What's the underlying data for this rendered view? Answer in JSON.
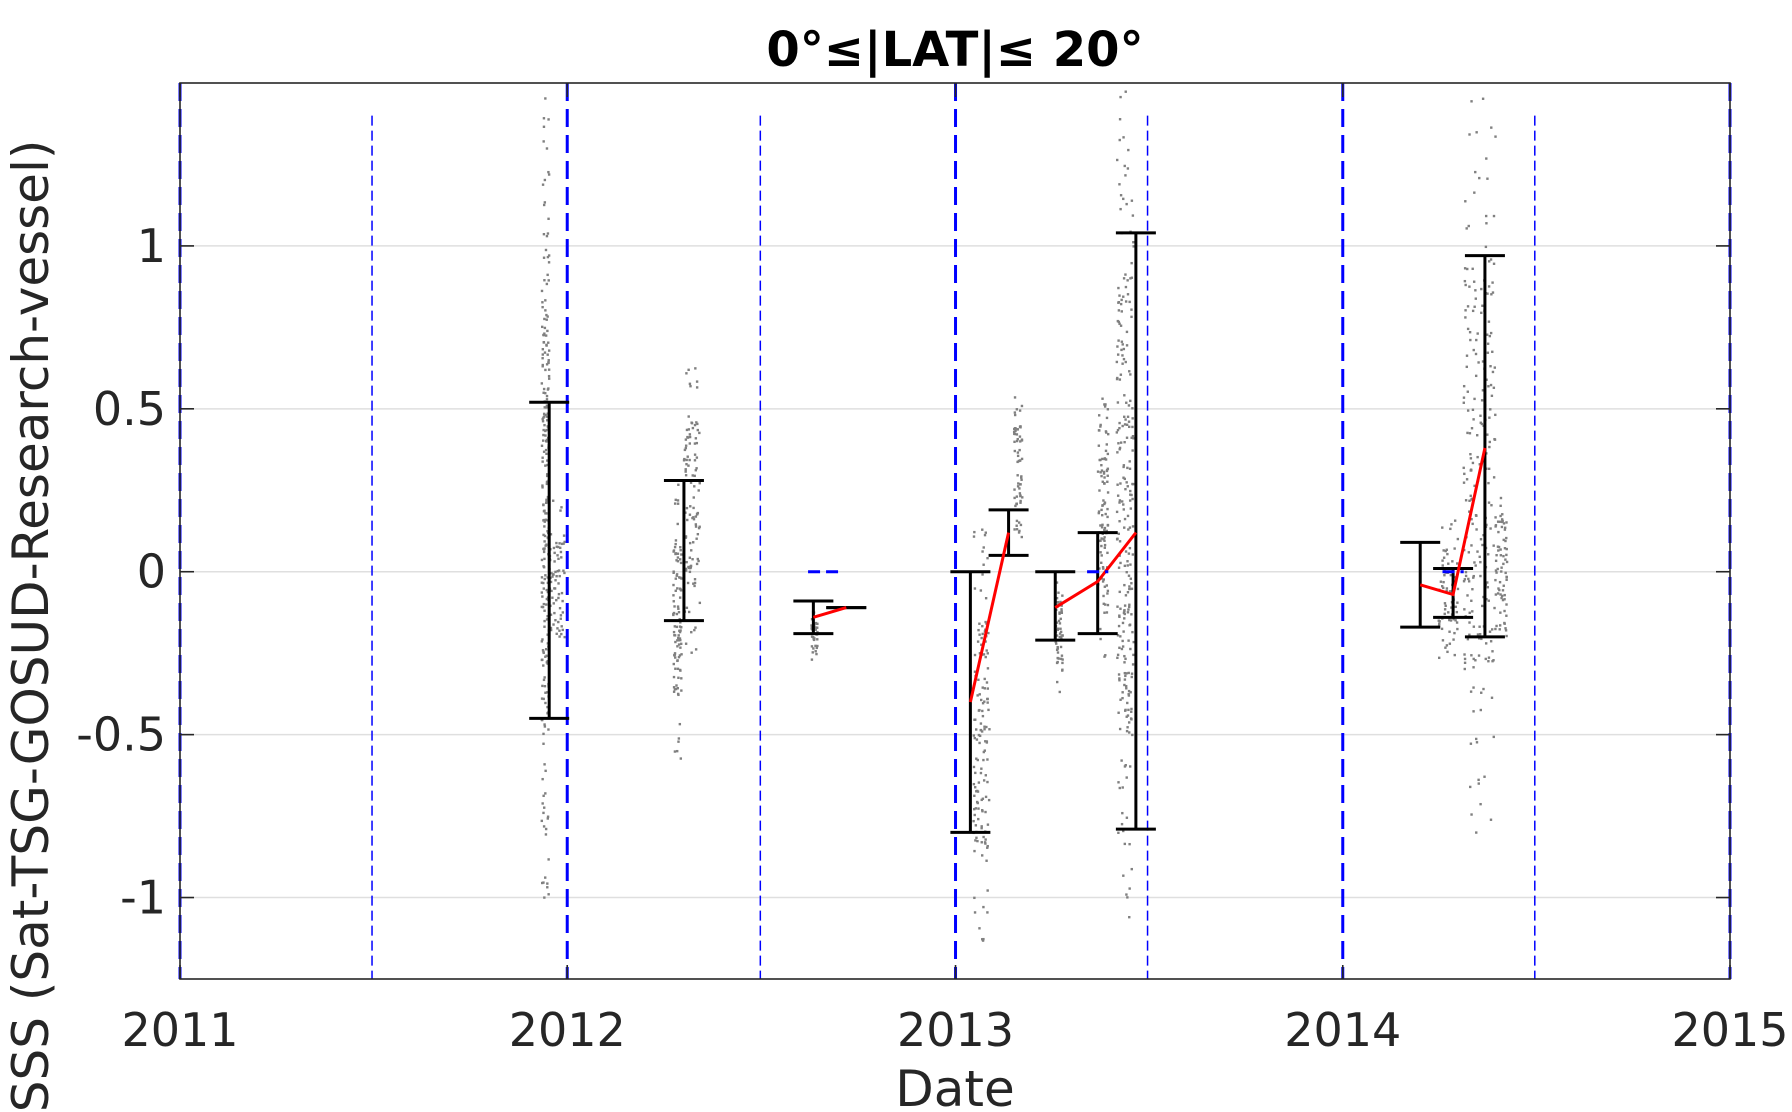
{
  "chart_data": {
    "type": "scatter",
    "title": "0°≤|LAT|≤ 20°",
    "xlabel": "Date",
    "ylabel": "Δ SSS (Sat-TSG-GOSUD-Research-vessel)",
    "xlim": [
      "2011-01-01",
      "2015-01-01"
    ],
    "ylim": [
      -1.25,
      1.5
    ],
    "x_ticks": [
      "2011",
      "2012",
      "2013",
      "2014",
      "2015"
    ],
    "y_ticks": [
      "-1",
      "-0.5",
      "0",
      "0.5",
      "1"
    ],
    "grid": "horizontal",
    "year_boundaries": [
      "2011-01-01",
      "2012-01-01",
      "2013-01-01",
      "2014-01-01",
      "2015-01-01"
    ],
    "half_year_markers": [
      "2011-07-01",
      "2012-07-01",
      "2013-07-01",
      "2014-07-01"
    ],
    "error_bars": [
      {
        "date": "2011-12-15",
        "low": -0.45,
        "high": 0.52
      },
      {
        "date": "2012-04-20",
        "low": -0.15,
        "high": 0.28
      },
      {
        "date": "2012-08-20",
        "low": -0.19,
        "high": -0.09
      },
      {
        "date": "2012-09-20",
        "low": -0.11,
        "high": -0.11
      },
      {
        "date": "2013-01-15",
        "low": -0.8,
        "high": 0.0
      },
      {
        "date": "2013-02-20",
        "low": 0.05,
        "high": 0.19
      },
      {
        "date": "2013-04-05",
        "low": -0.21,
        "high": 0.0
      },
      {
        "date": "2013-05-15",
        "low": -0.19,
        "high": 0.12
      },
      {
        "date": "2013-06-20",
        "low": -0.79,
        "high": 1.04
      },
      {
        "date": "2014-03-15",
        "low": -0.17,
        "high": 0.09
      },
      {
        "date": "2014-04-15",
        "low": -0.14,
        "high": 0.01
      },
      {
        "date": "2014-05-15",
        "low": -0.2,
        "high": 0.97
      }
    ],
    "mean_line_segments": [
      {
        "points": [
          [
            "2012-08-20",
            -0.14
          ],
          [
            "2012-09-20",
            -0.11
          ]
        ]
      },
      {
        "points": [
          [
            "2013-01-15",
            -0.4
          ],
          [
            "2013-02-20",
            0.12
          ]
        ]
      },
      {
        "points": [
          [
            "2013-04-05",
            -0.11
          ],
          [
            "2013-05-15",
            -0.03
          ],
          [
            "2013-06-20",
            0.12
          ]
        ]
      },
      {
        "points": [
          [
            "2014-03-15",
            -0.04
          ],
          [
            "2014-04-15",
            -0.07
          ],
          [
            "2014-05-15",
            0.38
          ]
        ]
      }
    ],
    "median_markers": [
      {
        "date_from": "2012-08-15",
        "date_to": "2012-09-15",
        "value": 0.0
      },
      {
        "date_from": "2013-05-05",
        "date_to": "2013-05-25",
        "value": 0.0
      },
      {
        "date_from": "2014-04-05",
        "date_to": "2014-04-25",
        "value": 0.0
      }
    ],
    "scatter_clusters": [
      {
        "date_from": "2011-12-08",
        "date_to": "2011-12-15",
        "low": -1.02,
        "high": 1.48
      },
      {
        "date_from": "2011-12-15",
        "date_to": "2011-12-30",
        "low": -0.3,
        "high": 0.22
      },
      {
        "date_from": "2012-04-10",
        "date_to": "2012-04-18",
        "low": -0.58,
        "high": 0.3
      },
      {
        "date_from": "2012-04-20",
        "date_to": "2012-05-05",
        "low": -0.25,
        "high": 0.67
      },
      {
        "date_from": "2012-08-18",
        "date_to": "2012-08-24",
        "low": -0.27,
        "high": -0.12
      },
      {
        "date_from": "2013-01-18",
        "date_to": "2013-02-02",
        "low": -1.15,
        "high": 0.14
      },
      {
        "date_from": "2013-02-25",
        "date_to": "2013-03-05",
        "low": 0.1,
        "high": 0.55
      },
      {
        "date_from": "2013-04-05",
        "date_to": "2013-04-12",
        "low": -0.37,
        "high": -0.02
      },
      {
        "date_from": "2013-05-15",
        "date_to": "2013-05-25",
        "low": -0.3,
        "high": 0.55
      },
      {
        "date_from": "2013-06-02",
        "date_to": "2013-06-18",
        "low": -1.07,
        "high": 1.48
      },
      {
        "date_from": "2014-04-01",
        "date_to": "2014-04-20",
        "low": -0.3,
        "high": 0.18
      },
      {
        "date_from": "2014-04-25",
        "date_to": "2014-05-25",
        "low": -0.82,
        "high": 1.48
      },
      {
        "date_from": "2014-05-25",
        "date_to": "2014-06-05",
        "low": -0.2,
        "high": 0.29
      }
    ],
    "colors": {
      "error_bar": "#000000",
      "mean_line": "#ff0000",
      "median_marker": "#0000ff",
      "year_boundary": "#0000ff",
      "half_year_marker": "#0000ff",
      "scatter": "#808080",
      "grid": "#dfdfdf"
    }
  }
}
